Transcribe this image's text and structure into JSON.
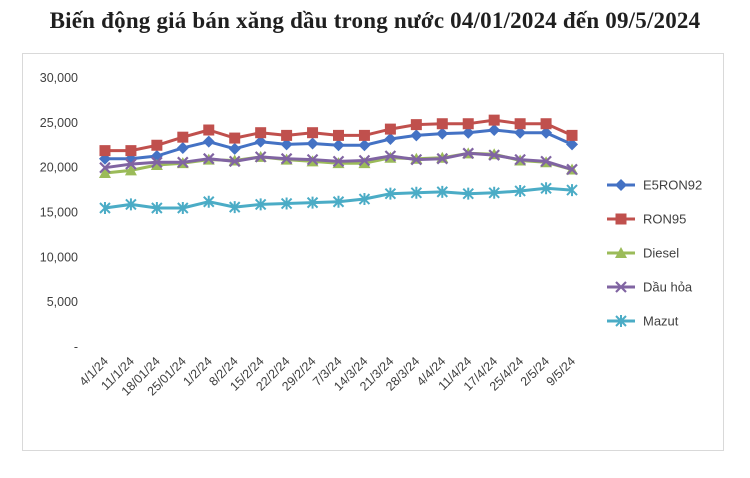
{
  "chart_data": {
    "type": "line",
    "title": "Biến động giá bán xăng dầu trong nước 04/01/2024 đến 09/5/2024",
    "xlabel": "",
    "ylabel": "",
    "ylim": [
      0,
      30000
    ],
    "y_ticks": [
      "-",
      "5,000",
      "10,000",
      "15,000",
      "20,000",
      "25,000",
      "30,000"
    ],
    "grid": false,
    "legend": "right",
    "categories": [
      "4/1/24",
      "11/1/24",
      "18/01/24",
      "25/01/24",
      "1/2/24",
      "8/2/24",
      "15/2/24",
      "22/2/24",
      "29/2/24",
      "7/3/24",
      "14/3/24",
      "21/3/24",
      "28/3/24",
      "4/4/24",
      "11/4/24",
      "17/4/24",
      "25/4/24",
      "2/5/24",
      "9/5/24"
    ],
    "series": [
      {
        "name": "E5RON92",
        "color": "#4472c4",
        "marker": "diamond",
        "values": [
          21000,
          21000,
          21300,
          22200,
          22900,
          22100,
          22900,
          22600,
          22700,
          22500,
          22500,
          23200,
          23600,
          23800,
          23900,
          24200,
          23900,
          23900,
          22600
        ]
      },
      {
        "name": "RON95",
        "color": "#c0504d",
        "marker": "square",
        "values": [
          21900,
          21900,
          22500,
          23400,
          24200,
          23300,
          23900,
          23600,
          23900,
          23600,
          23600,
          24300,
          24800,
          24900,
          24900,
          25300,
          24900,
          24900,
          23600
        ]
      },
      {
        "name": "Diesel",
        "color": "#9bbb59",
        "marker": "triangle",
        "values": [
          19400,
          19700,
          20300,
          20500,
          20900,
          20800,
          21200,
          20900,
          20700,
          20500,
          20500,
          21100,
          21000,
          21100,
          21600,
          21500,
          20800,
          20600,
          19800
        ]
      },
      {
        "name": "Dầu hỏa",
        "color": "#8064a2",
        "marker": "x",
        "values": [
          20000,
          20400,
          20600,
          20600,
          21000,
          20700,
          21200,
          21000,
          20900,
          20700,
          20800,
          21300,
          20900,
          21000,
          21600,
          21400,
          20900,
          20700,
          19800
        ]
      },
      {
        "name": "Mazut",
        "color": "#4bacc6",
        "marker": "star",
        "values": [
          15500,
          15900,
          15500,
          15500,
          16200,
          15600,
          15900,
          16000,
          16100,
          16200,
          16500,
          17100,
          17200,
          17300,
          17100,
          17200,
          17400,
          17700,
          17500
        ]
      }
    ]
  }
}
